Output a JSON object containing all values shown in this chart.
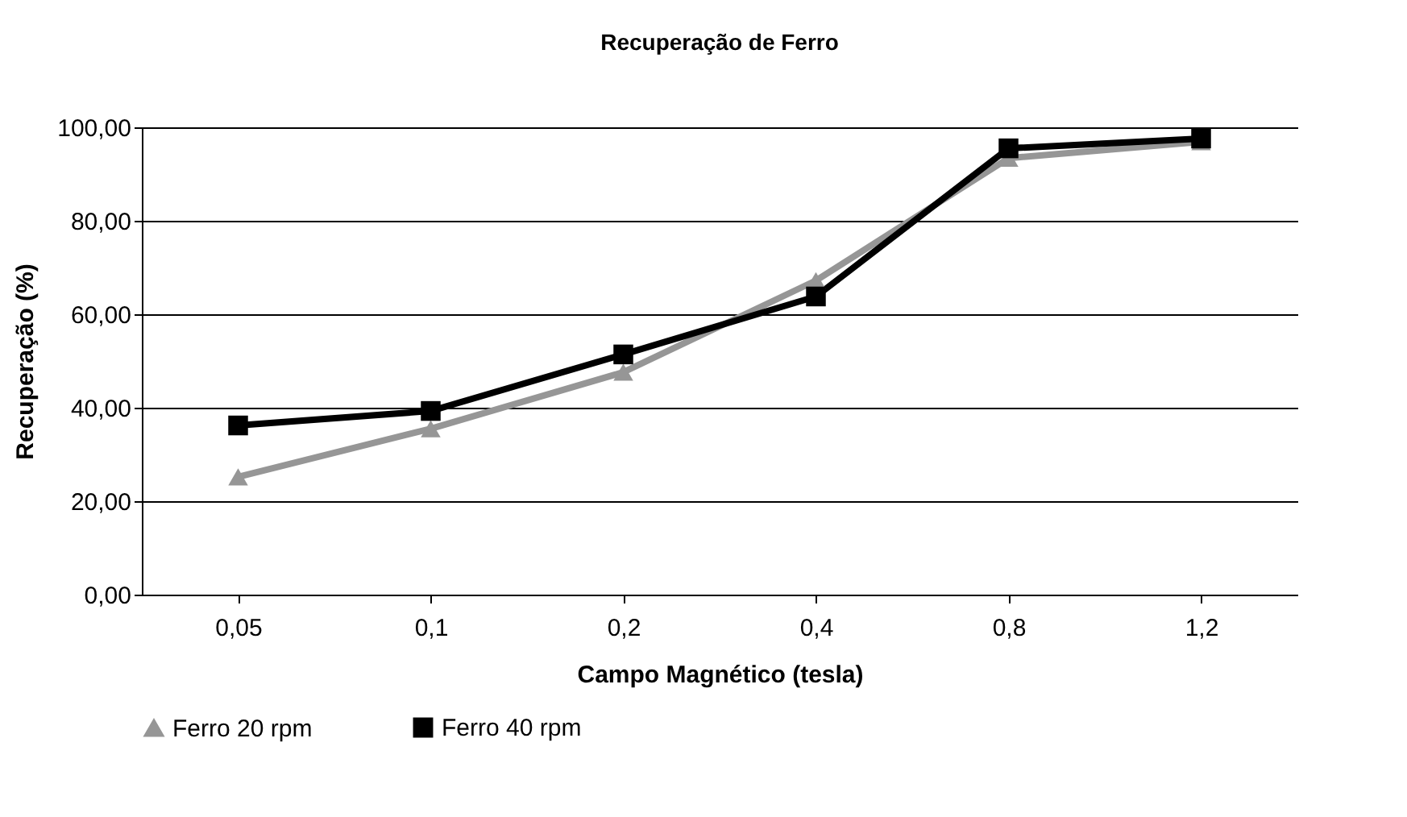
{
  "chart_data": {
    "type": "line",
    "title": "Recuperação de Ferro",
    "xlabel": "Campo Magnético (tesla)",
    "ylabel": "Recuperação (%)",
    "categories": [
      "0,05",
      "0,1",
      "0,2",
      "0,4",
      "0,8",
      "1,2"
    ],
    "series": [
      {
        "name": "Ferro 20 rpm",
        "color": "#969696",
        "marker": "triangle",
        "values": [
          25.2,
          35.5,
          47.6,
          67.2,
          93.4,
          96.9
        ]
      },
      {
        "name": "Ferro 40 rpm",
        "color": "#000000",
        "marker": "square",
        "values": [
          36.2,
          39.3,
          51.4,
          63.8,
          95.5,
          97.6
        ]
      }
    ],
    "ylim": [
      0,
      100
    ],
    "yticks": [
      {
        "value": 0,
        "label": "0,00"
      },
      {
        "value": 20,
        "label": "20,00"
      },
      {
        "value": 40,
        "label": "40,00"
      },
      {
        "value": 60,
        "label": "60,00"
      },
      {
        "value": 80,
        "label": "80,00"
      },
      {
        "value": 100,
        "label": "100,00"
      }
    ],
    "grid": "y",
    "legend": "bottom",
    "line_style": "solid"
  }
}
